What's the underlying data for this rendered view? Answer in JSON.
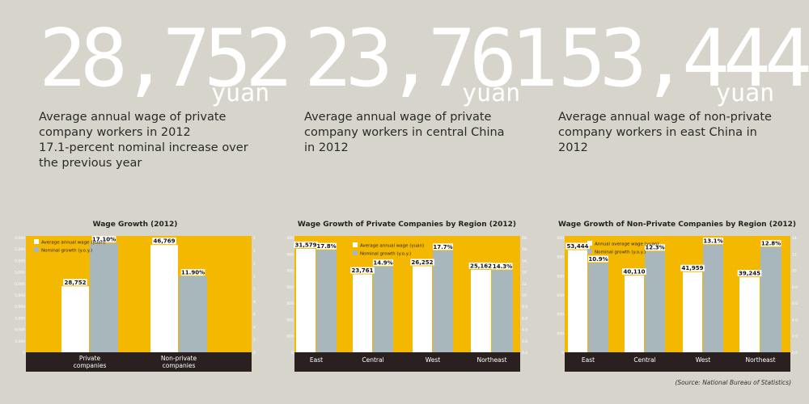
{
  "stats": [
    {
      "number": "28,752",
      "unit": "yuan",
      "lines": [
        "Average annual wage of private",
        "company workers in 2012",
        "17.1-percent nominal increase over",
        "the previous year"
      ]
    },
    {
      "number": "23,761",
      "unit": "yuan",
      "lines": [
        "Average annual wage of private",
        "company workers in central China",
        "in 2012"
      ]
    },
    {
      "number": "53,444",
      "unit": "yuan",
      "lines": [
        "Average annual wage of non-private",
        "company workers in east China in",
        "2012"
      ]
    }
  ],
  "colors": {
    "background": "#d6d4cb",
    "plot": "#f5b800",
    "wage": "#ffffff",
    "growth": "#a7b7bc",
    "axis_band": "#2a2020",
    "big_number": "#ffffff"
  },
  "chart_data": [
    {
      "type": "bar",
      "title": "Wage Growth (2012)",
      "categories": [
        "Private companies",
        "Non-private companies"
      ],
      "series": [
        {
          "name": "Average annual wage (yuan)",
          "values": [
            28752,
            46769
          ],
          "labels": [
            "28,752",
            "46,769"
          ]
        },
        {
          "name": "Nominal growth (y.o.y.)",
          "values": [
            17.1,
            11.9
          ],
          "labels": [
            "17.10%",
            "11.90%"
          ]
        }
      ],
      "ylim_left": [
        0,
        50000
      ],
      "ylim_right": [
        0,
        18
      ],
      "left_ticks": [
        "50,000",
        "45,000",
        "40,000",
        "35,000",
        "30,000",
        "25,000",
        "20,000",
        "15,000",
        "10,000",
        "5,000",
        "0"
      ],
      "right_ticks": [
        "18.00%",
        "16.00%",
        "14.00%",
        "12.00%",
        "10.00%",
        "8.00%",
        "6.00%",
        "4.00%",
        "2.00%",
        "0.00%"
      ],
      "legend": "top-left"
    },
    {
      "type": "bar",
      "title": "Wage Growth of Private Companies by Region (2012)",
      "categories": [
        "East",
        "Central",
        "West",
        "Northeast"
      ],
      "series": [
        {
          "name": "Average annual wage (yuan)",
          "values": [
            31579,
            23761,
            26252,
            25162
          ],
          "labels": [
            "31,579",
            "23,761",
            "26,252",
            "25,162"
          ]
        },
        {
          "name": "Nominal growth (y.o.y.)",
          "values": [
            17.8,
            14.9,
            17.7,
            14.3
          ],
          "labels": [
            "17.8%",
            "14.9%",
            "17.7%",
            "14.3%"
          ]
        }
      ],
      "ylim_left": [
        0,
        35000
      ],
      "ylim_right": [
        0,
        20
      ],
      "left_ticks": [
        "35,000",
        "30,000",
        "25,000",
        "20,000",
        "15,000",
        "10,000",
        "5,000",
        "0"
      ],
      "right_ticks": [
        "20.00%",
        "18.00%",
        "16.00%",
        "14.00%",
        "12.00%",
        "10.00%",
        "8.00%",
        "6.00%",
        "4.00%",
        "2.00%",
        "0.00%"
      ],
      "legend": "top-center"
    },
    {
      "type": "bar",
      "title": "Wage Growth of Non-Private Companies by Region (2012)",
      "categories": [
        "East",
        "Central",
        "West",
        "Northeast"
      ],
      "series": [
        {
          "name": "Annual average wage (yuan)",
          "values": [
            53444,
            40110,
            41959,
            39245
          ],
          "labels": [
            "53,444",
            "40,110",
            "41,959",
            "39,245"
          ]
        },
        {
          "name": "Nominal growth (y.o.y.)",
          "values": [
            10.9,
            12.3,
            13.1,
            12.8
          ],
          "labels": [
            "10.9%",
            "12.3%",
            "13.1%",
            "12.8%"
          ]
        }
      ],
      "ylim_left": [
        0,
        60000
      ],
      "ylim_right": [
        0,
        14
      ],
      "left_ticks": [
        "60,000",
        "50,000",
        "40,000",
        "30,000",
        "20,000",
        "10,000",
        "0"
      ],
      "right_ticks": [
        "14.00%",
        "12.00%",
        "10.00%",
        "8.00%",
        "6.00%",
        "4.00%",
        "2.00%",
        "0.00%"
      ],
      "legend": "top-left"
    }
  ],
  "source": "(Source: National Bureau of Statistics)"
}
